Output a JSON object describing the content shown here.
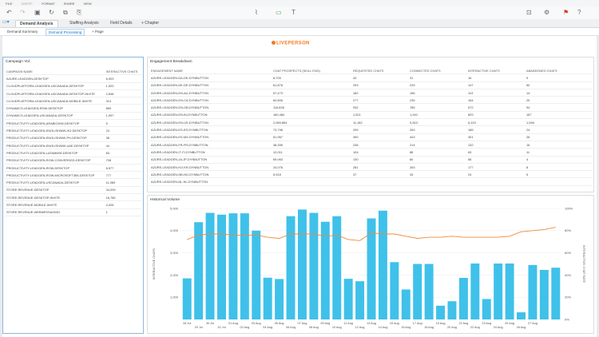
{
  "menu": [
    "FILE",
    "INSERT",
    "FORMAT",
    "SHARE",
    "VIEW"
  ],
  "tabs": [
    {
      "label": "Demand Analysis",
      "active": true
    },
    {
      "label": "Staffing Analysis",
      "active": false
    },
    {
      "label": "Field Details",
      "active": false
    },
    {
      "label": "+ Chapter",
      "active": false
    }
  ],
  "subtabs": [
    {
      "label": "Demand Summary",
      "active": false
    },
    {
      "label": "Demand Processing",
      "active": true
    },
    {
      "label": "+ Page",
      "active": false
    }
  ],
  "logo_text": "LIVEPERSON",
  "campaign": {
    "title": "Campaign Vol.",
    "headers": [
      "CAMPAIGN NAME",
      "INTERACTIVE CHATS"
    ],
    "rows": [
      [
        "AZURE-LEADGEN-DESKTOP",
        "6,903"
      ],
      [
        "CLOUDPLATFORM-LEADGEN-USCANADA-DESKTOP",
        "1,520"
      ],
      [
        "CLOUDPLATFORM-LEADGEN-USCANADA-DESKTOP-INVITE",
        "2,848"
      ],
      [
        "CLOUDPLATFORM-LEADGEN-USCANADA-MOBILE-INVITE",
        "314"
      ],
      [
        "DYNAMICS-LEADGEN-ROW-DESKTOP",
        "859"
      ],
      [
        "DYNAMICS-LEADGEN-USCANADA-DESKTOP",
        "1,097"
      ],
      [
        "PRODUCTIVITY-LEADGEN-ARABICWW-DESKTOP",
        "5"
      ],
      [
        "PRODUCTIVITY-LEADGEN-ENGLISHWW-HG-DESKTOP",
        "24"
      ],
      [
        "PRODUCTIVITY-LEADGEN-ENGLISHWW-PH-DESKTOP",
        "38"
      ],
      [
        "PRODUCTIVITY-LEADGEN-ENGLISHWW-UAE-DESKTOP",
        "44"
      ],
      [
        "PRODUCTIVITY-LEADGEN-LATAMWW-DESKTOP",
        "83"
      ],
      [
        "PRODUCTIVITY-LEADGEN-ROW-CONVERGED-DESKTOP",
        "706"
      ],
      [
        "PRODUCTIVITY-LEADGEN-ROW-DESKTOP",
        "8,577"
      ],
      [
        "PRODUCTIVITY-LEADGEN-ROW-MICROSOFT365-DESKTOP",
        "777"
      ],
      [
        "PRODUCTIVITY-LEADGEN-USCANADA-DESKTOP",
        "11,089"
      ],
      [
        "STORE-REVENUE-DESKTOP",
        "34,099"
      ],
      [
        "STORE-REVENUE-DESKTOP-INVITE",
        "16,780"
      ],
      [
        "STORE-REVENUE-MOBILE-INVITE",
        "4,426"
      ],
      [
        "STORE-REVENUE-WEBMESSAGING",
        "1"
      ]
    ]
  },
  "engagement": {
    "title": "Engagement Breakdown",
    "headers": [
      "ENGAGEMENT NAME",
      "CHAT PROSPECTS (SKILL ENG)",
      "REQUESTED CHATS",
      "CONNECTED CHATS",
      "INTERACTIVE CHATS",
      "ABANDONED CHATS"
    ],
    "rows": [
      [
        "AZURE-LEADGEN-DA-DK-DYNBUTTON",
        "8,705",
        "43",
        "31",
        "16",
        "9"
      ],
      [
        "AZURE-LEADGEN-DE-DE-DYNBUTTON",
        "61,878",
        "293",
        "225",
        "147",
        "50"
      ],
      [
        "AZURE-LEADGEN-EN-AU-DYNBUTTON",
        "57,473",
        "182",
        "156",
        "113",
        "14"
      ],
      [
        "AZURE-LEADGEN-EN-CA-DYNBUTTON",
        "60,806",
        "277",
        "235",
        "164",
        "25"
      ],
      [
        "AZURE-LEADGEN-EN-GB-DYNBUTTON",
        "116,828",
        "932",
        "785",
        "572",
        "94"
      ],
      [
        "AZURE-LEADGEN-EN-IN-DYNBUTTON",
        "160,484",
        "1,521",
        "1,240",
        "829",
        "167"
      ],
      [
        "AZURE-LEADGEN-EN-US-DYNBUTTON",
        "2,089,854",
        "11,182",
        "9,343",
        "6,120",
        "1,096"
      ],
      [
        "AZURE-LEADGEN-ES-ES-DYNBUTTON",
        "73,798",
        "299",
        "263",
        "186",
        "24"
      ],
      [
        "AZURE-LEADGEN-ES-MX-DYNBUTTON",
        "51,967",
        "490",
        "443",
        "301",
        "26"
      ],
      [
        "AZURE-LEADGEN-FR-FR-DYNBUTTON",
        "38,395",
        "238",
        "214",
        "132",
        "16"
      ],
      [
        "AZURE-LEADGEN-IT-IT-DYNBUTTON",
        "12,011",
        "104",
        "88",
        "63",
        "11"
      ],
      [
        "AZURE-LEADGEN-JA-JP-DYNBUTTON",
        "69,063",
        "130",
        "80",
        "56",
        "4"
      ],
      [
        "AZURE-LEADGEN-KO-KR-DYNBUTTON",
        "24,076",
        "281",
        "263",
        "177",
        "8"
      ],
      [
        "AZURE-LEADGEN-NB-NO-DYNBUTTON",
        "5,918",
        "37",
        "33",
        "24",
        "5"
      ],
      [
        "AZURE-LEADGEN-NL-NL-DYNBUTTON",
        "",
        "",
        "",
        "",
        ""
      ]
    ]
  },
  "chart_data": {
    "type": "bar",
    "title": "Historical Volume",
    "ylabel": "INTERACTIVE CHATS",
    "y2label": "INTERACTIVE CHAT RATE",
    "ylim": [
      0,
      5000
    ],
    "yticks": [
      "",
      "1,000",
      "2,000",
      "3,000",
      "4,000",
      "5,000"
    ],
    "y2lim": [
      0,
      100
    ],
    "y2ticks": [
      "0%",
      "20%",
      "40%",
      "60%",
      "80%",
      "100%"
    ],
    "xticks": [
      "28 Jul",
      "30 Jul",
      "01 Aug",
      "03 Aug",
      "05 Aug",
      "07 Aug",
      "09 Aug",
      "11 Aug",
      "13 Aug",
      "15 Aug",
      "17 Aug",
      "19 Aug",
      "21 Aug",
      "23 Aug",
      "25 Aug",
      "27 Aug"
    ],
    "xticks2": [
      "29 Jul",
      "31 Jul",
      "02 Aug",
      "04 Aug",
      "06 Aug",
      "08 Aug",
      "10 Aug",
      "12 Aug",
      "14 Aug",
      "16 Aug",
      "18 Aug",
      "20 Aug",
      "22 Aug",
      "24 Aug",
      "26 Aug"
    ],
    "series": [
      {
        "values": [
          1850,
          4380,
          4800,
          4720,
          4780,
          4780,
          4000,
          1880,
          1820,
          4650,
          4950,
          4800,
          4400,
          4650,
          1830,
          1720,
          4550,
          4900,
          2580,
          1350,
          2500,
          2500,
          620,
          820,
          1870,
          2520,
          920,
          2520,
          2520,
          320,
          2450,
          2230,
          2330
        ]
      },
      {
        "values": [
          72,
          76,
          77,
          77,
          76,
          76,
          76,
          74,
          73,
          77,
          77,
          77,
          75,
          76,
          72,
          71,
          78,
          77,
          77,
          75,
          73,
          74,
          74,
          75,
          74,
          74,
          74,
          74,
          75,
          79,
          80,
          81,
          83
        ]
      }
    ],
    "colors": {
      "bars": "#3fc1ea",
      "line": "#f08a3a"
    }
  }
}
